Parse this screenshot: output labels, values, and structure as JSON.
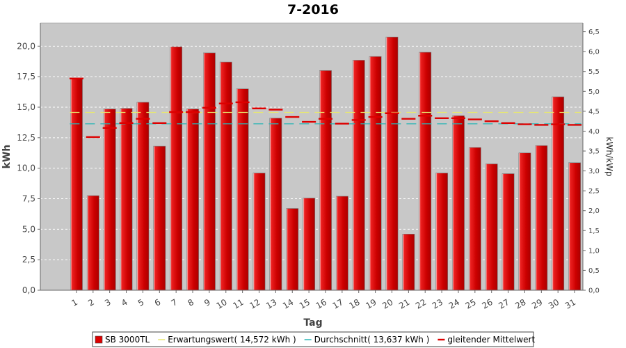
{
  "chart_data": {
    "type": "bar",
    "title": "7-2016",
    "xlabel": "Tag",
    "ylabel": "kWh",
    "y2label": "kWh/kWp",
    "ylim": [
      0,
      21.9
    ],
    "y2lim": [
      0,
      6.72
    ],
    "yticks": [
      "0,0",
      "2,5",
      "5,0",
      "7,5",
      "10,0",
      "12,5",
      "15,0",
      "17,5",
      "20,0"
    ],
    "y2ticks": [
      "0,0",
      "0,5",
      "1,0",
      "1,5",
      "2,0",
      "2,5",
      "3,0",
      "3,5",
      "4,0",
      "4,5",
      "5,0",
      "5,5",
      "6,0",
      "6,5"
    ],
    "grid": true,
    "legend_position": "bottom",
    "categories": [
      "1",
      "2",
      "3",
      "4",
      "5",
      "6",
      "7",
      "8",
      "9",
      "10",
      "11",
      "12",
      "13",
      "14",
      "15",
      "16",
      "17",
      "18",
      "19",
      "20",
      "21",
      "22",
      "23",
      "24",
      "25",
      "26",
      "27",
      "28",
      "29",
      "30",
      "31"
    ],
    "series": [
      {
        "name": "SB 3000TL",
        "kind": "bar",
        "color": "#dd0000",
        "values": [
          17.35,
          7.75,
          14.85,
          14.9,
          15.4,
          11.8,
          19.95,
          14.85,
          19.45,
          18.7,
          16.5,
          9.6,
          14.1,
          6.7,
          7.55,
          18.0,
          7.7,
          18.85,
          19.15,
          20.75,
          4.6,
          19.5,
          9.6,
          14.3,
          11.7,
          10.35,
          9.55,
          11.25,
          11.85,
          15.85,
          10.45
        ]
      },
      {
        "name": "Erwartungswert( 14,572 kWh )",
        "kind": "reference",
        "color": "#e8e86e",
        "value": 14.572
      },
      {
        "name": "Durchschnitt( 13,637 kWh )",
        "kind": "reference",
        "color": "#2bb5b5",
        "value": 13.637
      },
      {
        "name": "gleitender Mittelwert",
        "kind": "step",
        "color": "#dd0000",
        "values": [
          17.35,
          12.55,
          13.3,
          13.7,
          14.05,
          13.7,
          14.6,
          14.6,
          14.95,
          15.3,
          15.4,
          14.9,
          14.8,
          14.2,
          13.8,
          14.05,
          13.65,
          13.95,
          14.2,
          14.5,
          14.05,
          14.3,
          14.1,
          14.1,
          14.0,
          13.85,
          13.7,
          13.6,
          13.55,
          13.6,
          13.55
        ]
      }
    ]
  }
}
